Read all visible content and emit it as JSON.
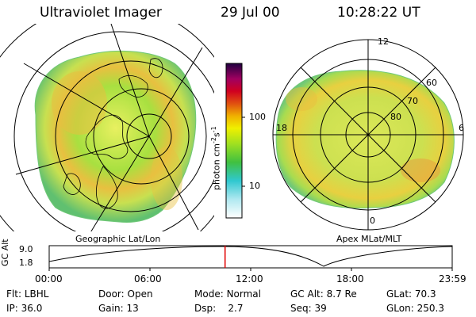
{
  "header": {
    "title": "Ultraviolet Imager",
    "date": "29 Jul 00",
    "time": "10:28:22 UT"
  },
  "left_panel": {
    "caption": "Geographic Lat/Lon"
  },
  "right_panel": {
    "caption": "Apex MLat/MLT",
    "mlt_labels": [
      "12",
      "18",
      "6",
      "0"
    ],
    "mlat_labels": [
      "60",
      "70",
      "80"
    ]
  },
  "colorbar": {
    "unit": "photon cm",
    "unit_exp1": "-2",
    "unit_mid": "s",
    "unit_exp2": "-1",
    "ticks": [
      "100",
      "10"
    ],
    "scale": "log"
  },
  "altitude_plot": {
    "ylabel": "GC Alt",
    "yticks": [
      "9.0",
      "1.8"
    ],
    "xticks": [
      "00:00",
      "06:00",
      "12:00",
      "18:00",
      "23:59"
    ],
    "marker_time_fraction": 0.4364,
    "marker_color": "#e00000"
  },
  "info": {
    "row1": [
      {
        "label": "Flt:",
        "value": "LBHL"
      },
      {
        "label": "Door:",
        "value": "Open"
      },
      {
        "label": "Mode:",
        "value": "Normal"
      },
      {
        "label": "GC Alt:",
        "value": "8.7 Re"
      },
      {
        "label": "GLat:",
        "value": "70.3"
      }
    ],
    "row2": [
      {
        "label": "IP:",
        "value": "36.0"
      },
      {
        "label": "Gain:",
        "value": "13"
      },
      {
        "label": "Dsp:",
        "value": "2.7"
      },
      {
        "label": "Seq:",
        "value": "39"
      },
      {
        "label": "GLon:",
        "value": "250.3"
      }
    ]
  }
}
